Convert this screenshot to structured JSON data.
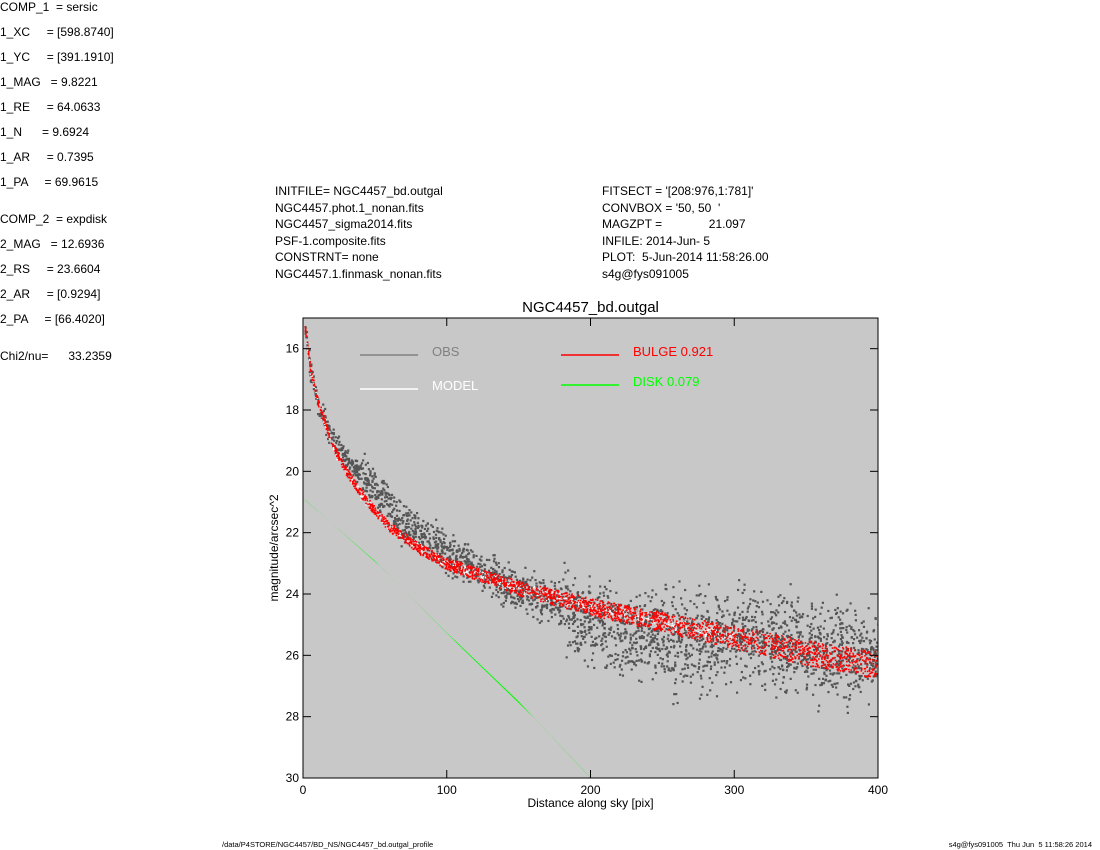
{
  "header_left": [
    "INITFILE= NGC4457_bd.outgal",
    "NGC4457.phot.1_nonan.fits",
    "NGC4457_sigma2014.fits",
    "PSF-1.composite.fits",
    "CONSTRNT= none",
    "NGC4457.1.finmask_nonan.fits"
  ],
  "header_mid": [
    "FITSECT = '[208:976,1:781]'",
    "CONVBOX = '50, 50  '",
    "MAGZPT =              21.097",
    "INFILE: 2014-Jun- 5",
    "PLOT:  5-Jun-2014 11:58:26.00",
    "s4g@fys091005"
  ],
  "params": [
    "COMP_1  = sersic",
    "1_XC     = [598.8740]",
    "1_YC     = [391.1910]",
    "1_MAG   = 9.8221",
    "1_RE     = 64.0633",
    "1_N      = 9.6924",
    "1_AR     = 0.7395",
    "1_PA     = 69.9615",
    "COMP_2  = expdisk",
    "2_MAG   = 12.6936",
    "2_RS     = 23.6604",
    "2_AR     = [0.9294]",
    "2_PA     = [66.4020]",
    "Chi2/nu=      33.2359"
  ],
  "footer": {
    "left": "/data/P4STORE/NGC4457/BD_NS/NGC4457_bd.outgal_profile",
    "right": "s4g@fys091005  Thu Jun  5 11:58:26 2014"
  },
  "chart_data": {
    "type": "scatter",
    "title": "NGC4457_bd.outgal",
    "xlabel": "Distance along sky [pix]",
    "ylabel": "magnitude/arcsec^2",
    "xlim": [
      0,
      400
    ],
    "ylim": [
      30,
      15
    ],
    "y_inverted": true,
    "xticks": [
      0,
      100,
      200,
      300,
      400
    ],
    "yticks": [
      16,
      18,
      20,
      22,
      24,
      26,
      28,
      30
    ],
    "grid": false,
    "legend_position": "top",
    "colors": {
      "background": "#c8c8c8",
      "obs": "#555555",
      "model": "#ffffff",
      "bulge": "#ff0000",
      "disk": "#00ff00"
    },
    "series": [
      {
        "name": "OBS",
        "color": "#808080",
        "legend_line_color": "#808080",
        "x": [
          1,
          5,
          10,
          20,
          30,
          40,
          50,
          60,
          70,
          80,
          90,
          100,
          120,
          140,
          160,
          180,
          200,
          220,
          250,
          280,
          300,
          320,
          350,
          380,
          400
        ],
        "y": [
          15.4,
          16.8,
          17.8,
          18.9,
          19.6,
          20.1,
          20.6,
          21.2,
          21.7,
          22.0,
          22.3,
          22.6,
          23.1,
          23.6,
          24.0,
          24.4,
          24.9,
          25.2,
          25.4,
          25.6,
          25.3,
          25.4,
          25.7,
          26.0,
          26.2
        ]
      },
      {
        "name": "MODEL",
        "color": "#ffffff",
        "x": [
          1,
          5,
          10,
          20,
          30,
          40,
          50,
          60,
          80,
          100,
          150,
          200,
          250,
          300,
          350,
          400
        ],
        "y": [
          15.3,
          16.7,
          17.7,
          19.1,
          20.0,
          20.7,
          21.3,
          21.8,
          22.5,
          23.0,
          23.8,
          24.4,
          24.9,
          25.4,
          25.8,
          26.1
        ]
      },
      {
        "name": "BULGE  0.921",
        "color": "#ff0000",
        "x": [
          1,
          5,
          10,
          20,
          30,
          40,
          50,
          60,
          80,
          100,
          150,
          200,
          250,
          300,
          350,
          400
        ],
        "y": [
          15.3,
          16.7,
          17.7,
          19.1,
          20.0,
          20.7,
          21.3,
          21.8,
          22.5,
          23.0,
          23.8,
          24.4,
          24.9,
          25.4,
          25.9,
          26.3
        ]
      },
      {
        "name": "DISK  0.079",
        "color": "#00ff00",
        "x": [
          0,
          50,
          100,
          150,
          195
        ],
        "y": [
          20.9,
          23.0,
          25.4,
          27.7,
          30.0
        ]
      }
    ]
  }
}
